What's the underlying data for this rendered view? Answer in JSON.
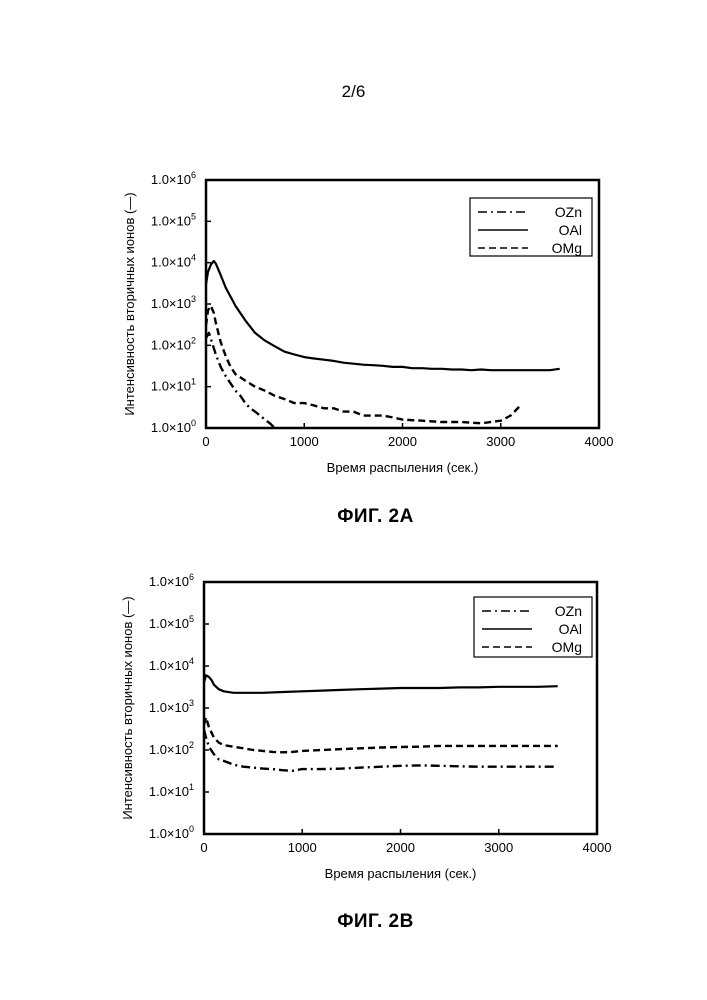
{
  "page": {
    "number": "2/6"
  },
  "chart_data": [
    {
      "type": "line",
      "figure_label": "ФИГ. 2А",
      "xlabel": "Время распыления (сек.)",
      "ylabel": "Интенсивность вторичных ионов (—)",
      "yscale": "log",
      "xlim": [
        0,
        4000
      ],
      "ylim": [
        1,
        1000000
      ],
      "x_ticks": [
        "0",
        "1000",
        "2000",
        "3000",
        "4000"
      ],
      "y_ticks": [
        {
          "base": "1.0×10",
          "exp": "0"
        },
        {
          "base": "1.0×10",
          "exp": "1"
        },
        {
          "base": "1.0×10",
          "exp": "2"
        },
        {
          "base": "1.0×10",
          "exp": "3"
        },
        {
          "base": "1.0×10",
          "exp": "4"
        },
        {
          "base": "1.0×10",
          "exp": "5"
        },
        {
          "base": "1.0×10",
          "exp": "6"
        }
      ],
      "grid": false,
      "legend_position": "top-right",
      "series": [
        {
          "name": "OZn",
          "style": "dash-dot",
          "x": [
            0,
            30,
            60,
            100,
            150,
            200,
            250,
            300,
            350,
            400,
            450,
            500,
            550,
            600,
            650,
            700
          ],
          "y": [
            150,
            200,
            120,
            60,
            30,
            18,
            12,
            8,
            6,
            4,
            3,
            2.5,
            2,
            1.6,
            1.3,
            1
          ]
        },
        {
          "name": "OAl",
          "style": "solid",
          "x": [
            0,
            20,
            50,
            80,
            100,
            150,
            200,
            300,
            400,
            500,
            600,
            700,
            800,
            900,
            1000,
            1100,
            1200,
            1300,
            1400,
            1500,
            1600,
            1700,
            1800,
            1900,
            2000,
            2100,
            2200,
            2300,
            2400,
            2500,
            2600,
            2700,
            2800,
            2900,
            3000,
            3100,
            3200,
            3300,
            3400,
            3500,
            3600
          ],
          "y": [
            3000,
            6000,
            9000,
            11000,
            9500,
            5000,
            2500,
            900,
            400,
            200,
            130,
            95,
            70,
            60,
            52,
            48,
            45,
            42,
            38,
            36,
            34,
            33,
            32,
            30,
            30,
            28,
            28,
            27,
            27,
            26,
            26,
            25,
            26,
            25,
            25,
            25,
            25,
            25,
            25,
            25,
            27
          ]
        },
        {
          "name": "OMg",
          "style": "dashed",
          "x": [
            0,
            20,
            50,
            80,
            100,
            150,
            200,
            250,
            300,
            400,
            500,
            600,
            700,
            800,
            900,
            1000,
            1100,
            1200,
            1300,
            1400,
            1500,
            1600,
            1700,
            1800,
            1900,
            2000,
            2200,
            2400,
            2600,
            2800,
            3000,
            3100,
            3200
          ],
          "y": [
            300,
            700,
            900,
            600,
            350,
            120,
            55,
            30,
            20,
            14,
            10,
            8,
            6,
            5,
            4,
            4,
            3.5,
            3,
            3,
            2.5,
            2.5,
            2,
            2,
            2,
            1.8,
            1.6,
            1.5,
            1.4,
            1.4,
            1.3,
            1.5,
            2,
            3.5
          ]
        }
      ]
    },
    {
      "type": "line",
      "figure_label": "ФИГ. 2В",
      "xlabel": "Время распыления (сек.)",
      "ylabel": "Интенсивность вторичных ионов (—)",
      "yscale": "log",
      "xlim": [
        0,
        4000
      ],
      "ylim": [
        1,
        1000000
      ],
      "x_ticks": [
        "0",
        "1000",
        "2000",
        "3000",
        "4000"
      ],
      "y_ticks": [
        {
          "base": "1.0×10",
          "exp": "0"
        },
        {
          "base": "1.0×10",
          "exp": "1"
        },
        {
          "base": "1.0×10",
          "exp": "2"
        },
        {
          "base": "1.0×10",
          "exp": "3"
        },
        {
          "base": "1.0×10",
          "exp": "4"
        },
        {
          "base": "1.0×10",
          "exp": "5"
        },
        {
          "base": "1.0×10",
          "exp": "6"
        }
      ],
      "grid": false,
      "legend_position": "top-right",
      "series": [
        {
          "name": "OZn",
          "style": "dash-dot",
          "x": [
            0,
            20,
            50,
            100,
            150,
            200,
            300,
            400,
            500,
            600,
            700,
            800,
            900,
            1000,
            1200,
            1400,
            1600,
            1800,
            2000,
            2200,
            2400,
            2600,
            2800,
            3000,
            3200,
            3400,
            3600
          ],
          "y": [
            300,
            200,
            120,
            80,
            60,
            55,
            45,
            40,
            38,
            36,
            35,
            33,
            32,
            35,
            35,
            36,
            38,
            40,
            42,
            43,
            42,
            41,
            40,
            40,
            40,
            40,
            40
          ]
        },
        {
          "name": "OAl",
          "style": "solid",
          "x": [
            0,
            20,
            50,
            80,
            100,
            150,
            200,
            300,
            400,
            500,
            600,
            800,
            1000,
            1200,
            1400,
            1600,
            1800,
            2000,
            2200,
            2400,
            2600,
            2800,
            3000,
            3200,
            3400,
            3600
          ],
          "y": [
            4000,
            6000,
            5500,
            4500,
            3600,
            2800,
            2500,
            2300,
            2300,
            2300,
            2300,
            2400,
            2500,
            2600,
            2700,
            2800,
            2900,
            3000,
            3000,
            3000,
            3100,
            3100,
            3200,
            3200,
            3200,
            3300
          ]
        },
        {
          "name": "OMg",
          "style": "dashed",
          "x": [
            0,
            20,
            50,
            100,
            150,
            200,
            300,
            400,
            500,
            600,
            700,
            800,
            900,
            1000,
            1200,
            1400,
            1600,
            1800,
            2000,
            2200,
            2400,
            2600,
            2800,
            3000,
            3200,
            3400,
            3600
          ],
          "y": [
            400,
            600,
            350,
            200,
            150,
            130,
            120,
            110,
            100,
            95,
            90,
            88,
            90,
            95,
            100,
            105,
            110,
            115,
            118,
            120,
            125,
            125,
            125,
            125,
            125,
            125,
            125
          ]
        }
      ]
    }
  ]
}
